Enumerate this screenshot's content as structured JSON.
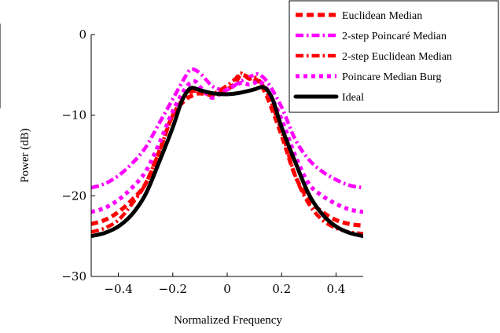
{
  "chart_data": {
    "type": "line",
    "title": "",
    "xlabel": "Normalized Frequency",
    "ylabel": "Power (dB)",
    "xlim": [
      -0.5,
      0.5
    ],
    "ylim": [
      -30,
      0
    ],
    "xticks": [
      -0.4,
      -0.2,
      0,
      0.2,
      0.4
    ],
    "xtick_labels": [
      "−0.4",
      "−0.2",
      "0",
      "0.2",
      "0.4"
    ],
    "yticks": [
      0,
      -10,
      -20,
      -30
    ],
    "ytick_labels": [
      "0",
      "−10",
      "−20",
      "−30"
    ],
    "grid": false,
    "legend_position": "top-right",
    "series": [
      {
        "name": "Euclidean Median",
        "color": "#ff0000",
        "style": "dashed",
        "x": [
          -0.5,
          -0.45,
          -0.4,
          -0.35,
          -0.3,
          -0.25,
          -0.2,
          -0.15,
          -0.12,
          -0.1,
          -0.05,
          0,
          0.03,
          0.05,
          0.08,
          0.1,
          0.12,
          0.15,
          0.2,
          0.25,
          0.3,
          0.35,
          0.4,
          0.45,
          0.5
        ],
        "y": [
          -23.5,
          -23.0,
          -22.0,
          -20.5,
          -18.5,
          -14.5,
          -10.0,
          -8.0,
          -7.5,
          -7.3,
          -7.5,
          -6.8,
          -6.0,
          -5.0,
          -5.3,
          -5.5,
          -6.0,
          -8.0,
          -12.5,
          -17.5,
          -20.5,
          -22.0,
          -23.0,
          -23.5,
          -23.7
        ]
      },
      {
        "name": "2-step Poincaré Median",
        "color": "#ff00ff",
        "style": "dashdot",
        "x": [
          -0.5,
          -0.45,
          -0.4,
          -0.35,
          -0.3,
          -0.25,
          -0.2,
          -0.15,
          -0.13,
          -0.1,
          -0.05,
          0,
          0.05,
          0.1,
          0.12,
          0.15,
          0.2,
          0.25,
          0.3,
          0.35,
          0.4,
          0.45,
          0.5
        ],
        "y": [
          -19.0,
          -18.5,
          -17.5,
          -16.0,
          -14.0,
          -11.0,
          -8.0,
          -5.0,
          -4.3,
          -4.8,
          -6.5,
          -6.8,
          -5.8,
          -5.0,
          -5.0,
          -6.0,
          -9.0,
          -13.0,
          -15.5,
          -17.0,
          -18.0,
          -18.7,
          -19.0
        ]
      },
      {
        "name": "2-step Euclidean Median",
        "color": "#ff0000",
        "style": "dashdot",
        "x": [
          -0.5,
          -0.45,
          -0.4,
          -0.35,
          -0.3,
          -0.25,
          -0.2,
          -0.15,
          -0.12,
          -0.1,
          -0.05,
          0,
          0.03,
          0.05,
          0.08,
          0.1,
          0.12,
          0.15,
          0.2,
          0.25,
          0.3,
          0.35,
          0.4,
          0.45,
          0.5
        ],
        "y": [
          -24.5,
          -24.0,
          -23.0,
          -21.0,
          -18.5,
          -14.5,
          -10.0,
          -7.5,
          -7.0,
          -7.2,
          -7.3,
          -6.3,
          -5.5,
          -4.8,
          -5.5,
          -5.3,
          -5.8,
          -7.5,
          -12.0,
          -17.5,
          -21.0,
          -23.0,
          -24.0,
          -24.5,
          -24.7
        ]
      },
      {
        "name": "Poincare Median Burg",
        "color": "#ff00ff",
        "style": "dotted",
        "x": [
          -0.5,
          -0.45,
          -0.4,
          -0.35,
          -0.3,
          -0.25,
          -0.2,
          -0.15,
          -0.12,
          -0.1,
          -0.07,
          -0.05,
          0,
          0.05,
          0.08,
          0.1,
          0.12,
          0.15,
          0.2,
          0.25,
          0.3,
          0.35,
          0.4,
          0.45,
          0.5
        ],
        "y": [
          -22.0,
          -21.5,
          -20.5,
          -19.0,
          -17.0,
          -13.5,
          -9.5,
          -6.5,
          -5.8,
          -6.5,
          -7.5,
          -7.8,
          -6.8,
          -6.0,
          -6.2,
          -6.0,
          -5.8,
          -7.0,
          -10.5,
          -15.0,
          -18.5,
          -20.0,
          -21.0,
          -21.7,
          -22.0
        ]
      },
      {
        "name": "Ideal",
        "color": "#000000",
        "style": "solid",
        "x": [
          -0.5,
          -0.45,
          -0.4,
          -0.35,
          -0.3,
          -0.25,
          -0.2,
          -0.17,
          -0.15,
          -0.13,
          -0.1,
          -0.05,
          0,
          0.05,
          0.1,
          0.13,
          0.15,
          0.17,
          0.2,
          0.25,
          0.3,
          0.35,
          0.4,
          0.45,
          0.5
        ],
        "y": [
          -25.0,
          -24.6,
          -23.8,
          -22.3,
          -19.8,
          -15.8,
          -11.5,
          -8.5,
          -7.2,
          -6.6,
          -6.9,
          -7.3,
          -7.4,
          -7.2,
          -6.8,
          -6.5,
          -7.0,
          -8.3,
          -11.5,
          -15.8,
          -19.8,
          -22.3,
          -23.8,
          -24.6,
          -25.0
        ]
      }
    ]
  }
}
